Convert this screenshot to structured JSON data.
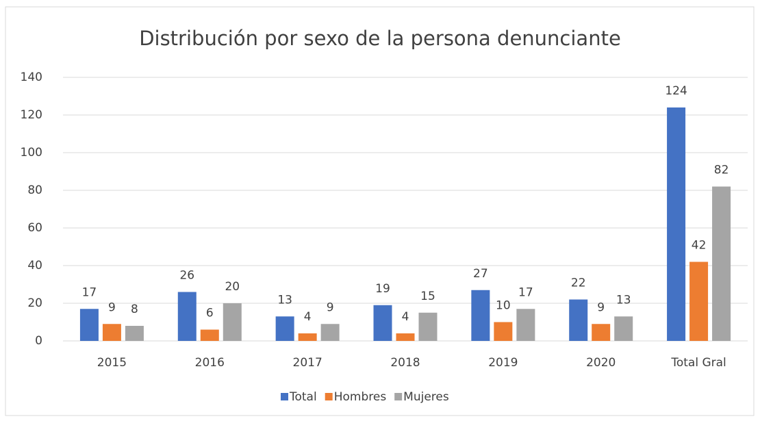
{
  "chart_data": {
    "type": "bar",
    "title": "Distribución por sexo de la persona denunciante",
    "categories": [
      "2015",
      "2016",
      "2017",
      "2018",
      "2019",
      "2020",
      "Total Gral"
    ],
    "series": [
      {
        "name": "Total",
        "color": "#4472c4",
        "values": [
          17,
          26,
          13,
          19,
          27,
          22,
          124
        ]
      },
      {
        "name": "Hombres",
        "color": "#ed7d31",
        "values": [
          9,
          6,
          4,
          4,
          10,
          9,
          42
        ]
      },
      {
        "name": "Mujeres",
        "color": "#a5a5a5",
        "values": [
          8,
          20,
          9,
          15,
          17,
          13,
          82
        ]
      }
    ],
    "ylim": [
      0,
      140
    ],
    "yticks": [
      0,
      20,
      40,
      60,
      80,
      100,
      120,
      140
    ],
    "grid": true,
    "legend": "bottom"
  }
}
